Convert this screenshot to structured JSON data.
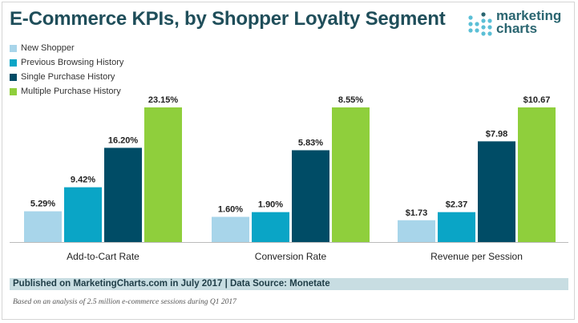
{
  "chart_data": {
    "type": "bar",
    "title": "E-Commerce KPIs, by Shopper Loyalty Segment",
    "categories": [
      "Add-to-Cart Rate",
      "Conversion Rate",
      "Revenue per Session"
    ],
    "note": "Each category group is drawn on its own scale",
    "series": [
      {
        "name": "New Shopper",
        "color": "#a8d5ea",
        "values": [
          5.29,
          1.6,
          1.73
        ],
        "labels": [
          "5.29%",
          "1.60%",
          "$1.73"
        ]
      },
      {
        "name": "Previous Browsing History",
        "color": "#0aa5c6",
        "values": [
          9.42,
          1.9,
          2.37
        ],
        "labels": [
          "9.42%",
          "1.90%",
          "$2.37"
        ]
      },
      {
        "name": "Single Purchase History",
        "color": "#004c66",
        "values": [
          16.2,
          5.83,
          7.98
        ],
        "labels": [
          "16.20%",
          "5.83%",
          "$7.98"
        ]
      },
      {
        "name": "Multiple Purchase History",
        "color": "#8fcf3c",
        "values": [
          23.15,
          8.55,
          10.67
        ],
        "labels": [
          "23.15%",
          "8.55%",
          "$10.67"
        ]
      }
    ]
  },
  "logo": {
    "line1": "marketing",
    "line2": "charts"
  },
  "footer": {
    "source": "Published on MarketingCharts.com in July 2017 | Data Source: Monetate",
    "note": "Based on an analysis of 2.5 million e-commerce sessions during Q1 2017"
  },
  "colors": {
    "title": "#1f4e5a",
    "footer_bar": "#c8dde2"
  }
}
